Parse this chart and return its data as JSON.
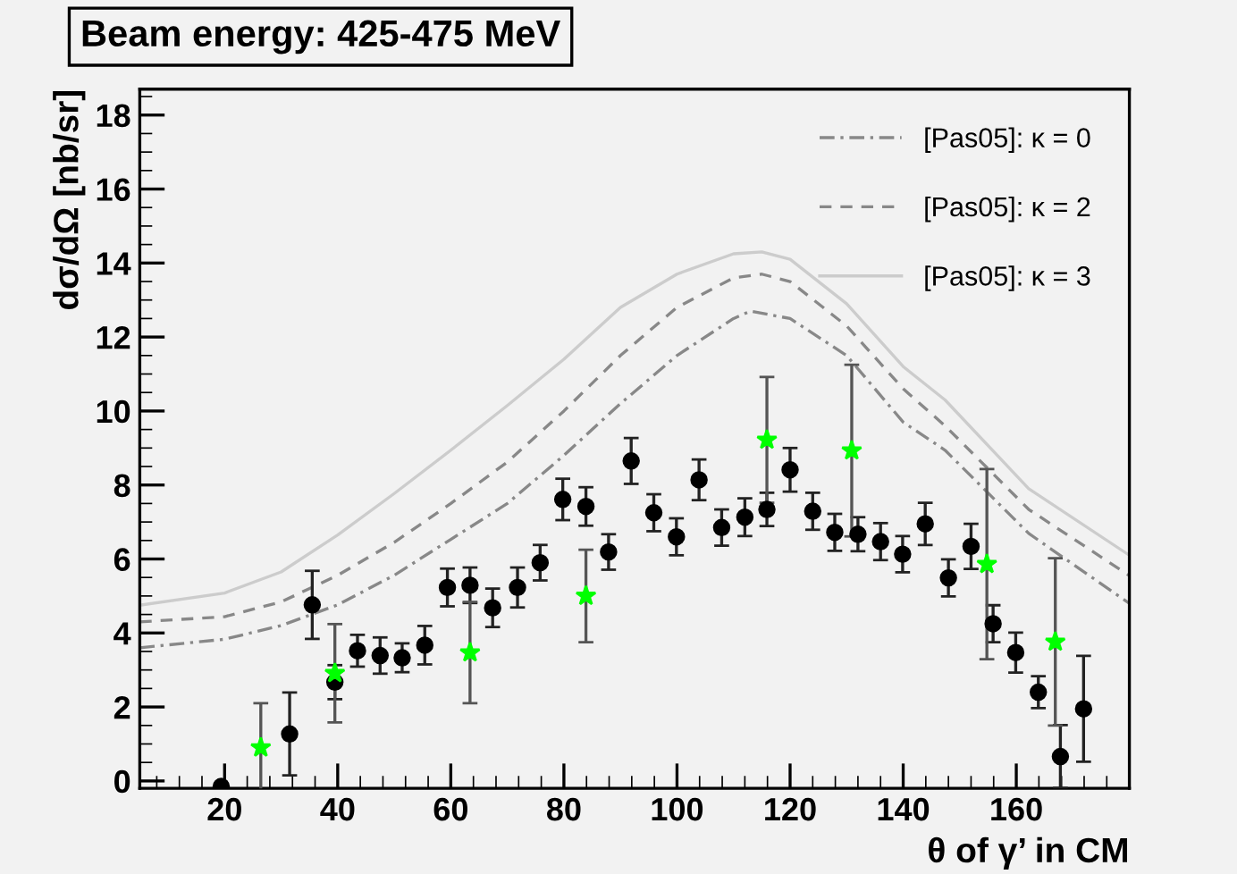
{
  "chart_data": {
    "type": "scatter",
    "title": "Beam energy: 425-475 MeV",
    "xlabel": "θ of γ’ in CM",
    "ylabel": "dσ/dΩ [nb/sr]",
    "xlim": [
      5,
      180
    ],
    "ylim": [
      -0.2,
      18.7
    ],
    "xticks": [
      20,
      40,
      60,
      80,
      100,
      120,
      140,
      160
    ],
    "yticks": [
      0,
      2,
      4,
      6,
      8,
      10,
      12,
      14,
      16,
      18
    ],
    "grid": false,
    "legend": "top right",
    "series": [
      {
        "color": "#000000",
        "marker": "circle",
        "x": [
          19.4,
          31.5,
          35.5,
          39.5,
          43.5,
          47.5,
          51.4,
          55.4,
          59.4,
          63.4,
          67.4,
          71.8,
          75.8,
          79.8,
          83.9,
          87.9,
          91.9,
          95.9,
          99.9,
          103.9,
          107.9,
          112,
          115.9,
          120,
          124,
          127.9,
          132,
          136,
          139.9,
          143.9,
          148,
          152,
          155.9,
          159.9,
          163.9,
          167.8,
          171.9
        ],
        "values": [
          -0.15,
          1.27,
          4.76,
          2.67,
          3.52,
          3.39,
          3.33,
          3.67,
          5.23,
          5.29,
          4.68,
          5.23,
          5.9,
          7.61,
          7.42,
          6.19,
          8.65,
          7.25,
          6.6,
          8.14,
          6.85,
          7.13,
          7.34,
          8.41,
          7.29,
          6.72,
          6.67,
          6.47,
          6.13,
          6.95,
          5.49,
          6.34,
          4.25,
          3.47,
          2.4,
          0.66,
          1.95
        ],
        "errors": [
          null,
          1.12,
          0.92,
          0.46,
          0.43,
          0.49,
          0.39,
          0.52,
          0.51,
          0.48,
          0.52,
          0.54,
          0.48,
          0.56,
          0.52,
          0.48,
          0.62,
          0.5,
          0.5,
          0.55,
          0.49,
          0.51,
          0.45,
          0.59,
          0.5,
          0.5,
          0.46,
          0.5,
          0.49,
          0.57,
          0.5,
          0.61,
          0.5,
          0.54,
          0.43,
          0.85,
          1.43
        ]
      },
      {
        "color": "#00ff00",
        "marker": "star",
        "x": [
          26.4,
          39.5,
          63.4,
          83.9,
          115.9,
          130.9,
          154.8,
          166.9
        ],
        "values": [
          0.9,
          2.91,
          3.47,
          5.0,
          9.22,
          8.93,
          5.86,
          3.76
        ],
        "errors": [
          1.2,
          1.33,
          1.37,
          1.25,
          1.7,
          2.32,
          2.57,
          2.26
        ]
      },
      {
        "type": "line",
        "name": "[Pas05]: κ = 0",
        "color": "#888888",
        "line_style": "dashdot",
        "x": [
          5,
          20,
          30,
          40,
          50,
          60,
          70,
          80,
          90,
          100,
          110,
          113,
          120,
          130,
          140,
          147.4,
          162.2,
          180
        ],
        "values": [
          3.6,
          3.83,
          4.2,
          4.76,
          5.56,
          6.53,
          7.5,
          8.8,
          10.2,
          11.5,
          12.5,
          12.7,
          12.5,
          11.5,
          9.7,
          8.94,
          6.69,
          4.8
        ]
      },
      {
        "type": "line",
        "name": "[Pas05]: κ = 2",
        "color": "#888888",
        "line_style": "dashed",
        "x": [
          5,
          20,
          30,
          40,
          50,
          60,
          70,
          80,
          90,
          100,
          110,
          115,
          120,
          130,
          140,
          147.4,
          162.2,
          180
        ],
        "values": [
          4.3,
          4.44,
          4.84,
          5.56,
          6.45,
          7.5,
          8.62,
          10.0,
          11.5,
          12.8,
          13.6,
          13.7,
          13.5,
          12.3,
          10.6,
          9.6,
          7.34,
          5.55
        ]
      },
      {
        "type": "line",
        "name": "[Pas05]: κ = 3",
        "color": "#cccccc",
        "line_style": "solid",
        "x": [
          5,
          20,
          30,
          40,
          50,
          60,
          70,
          80,
          90,
          100,
          110,
          115,
          120,
          130,
          140,
          147.4,
          162.2,
          180
        ],
        "values": [
          4.75,
          5.08,
          5.65,
          6.65,
          7.77,
          8.94,
          10.15,
          11.4,
          12.8,
          13.7,
          14.25,
          14.3,
          14.1,
          12.9,
          11.2,
          10.3,
          7.9,
          6.1
        ]
      }
    ]
  }
}
